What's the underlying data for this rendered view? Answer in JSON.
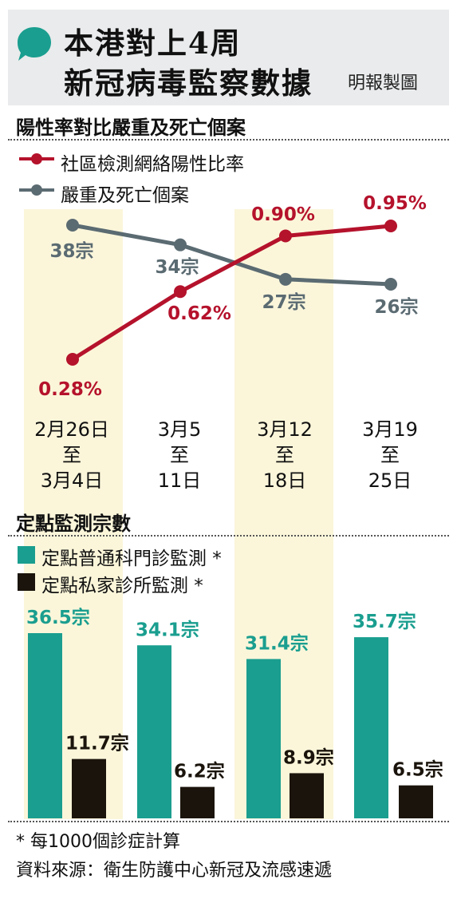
{
  "header": {
    "title_line1": "本港對上4周",
    "title_line2": "新冠病毒監察數據",
    "credit": "明報製圖",
    "bubble_color": "#1a9e8f"
  },
  "section1": {
    "title": "陽性率對比嚴重及死亡個案",
    "legend": [
      {
        "label": "社區檢測網絡陽性比率",
        "color": "#b5122c"
      },
      {
        "label": "嚴重及死亡個案",
        "color": "#5b6b72"
      }
    ]
  },
  "section2": {
    "title": "定點監測宗數",
    "legend": [
      {
        "label": "定點普通科門診監測 *",
        "color": "#1a9e8f"
      },
      {
        "label": "定點私家診所監測 *",
        "color": "#1a140c"
      }
    ]
  },
  "periods": [
    {
      "line1": "2月26日",
      "line2": "至",
      "line3": "3月4日"
    },
    {
      "line1": "3月5",
      "line2": "至",
      "line3": "11日"
    },
    {
      "line1": "3月12",
      "line2": "至",
      "line3": "18日"
    },
    {
      "line1": "3月19",
      "line2": "至",
      "line3": "25日"
    }
  ],
  "highlight_color": "#fbf6da",
  "chart_data": [
    {
      "type": "line",
      "categories": [
        "2月26日至3月4日",
        "3月5至11日",
        "3月12至18日",
        "3月19至25日"
      ],
      "series": [
        {
          "name": "社區檢測網絡陽性比率",
          "values": [
            0.28,
            0.62,
            0.9,
            0.95
          ],
          "labels": [
            "0.28%",
            "0.62%",
            "0.90%",
            "0.95%"
          ],
          "color": "#b5122c"
        },
        {
          "name": "嚴重及死亡個案",
          "values": [
            38,
            34,
            27,
            26
          ],
          "labels": [
            "38宗",
            "34宗",
            "27宗",
            "26宗"
          ],
          "color": "#5b6b72"
        }
      ],
      "title": "陽性率對比嚴重及死亡個案"
    },
    {
      "type": "bar",
      "categories": [
        "2月26日至3月4日",
        "3月5至11日",
        "3月12至18日",
        "3月19至25日"
      ],
      "series": [
        {
          "name": "定點普通科門診監測 *",
          "values": [
            36.5,
            34.1,
            31.4,
            35.7
          ],
          "labels": [
            "36.5宗",
            "34.1宗",
            "31.4宗",
            "35.7宗"
          ],
          "color": "#1a9e8f"
        },
        {
          "name": "定點私家診所監測 *",
          "values": [
            11.7,
            6.2,
            8.9,
            6.5
          ],
          "labels": [
            "11.7宗",
            "6.2宗",
            "8.9宗",
            "6.5宗"
          ],
          "color": "#1a140c"
        }
      ],
      "title": "定點監測宗數"
    }
  ],
  "footer": {
    "note": "* 每1000個診症計算",
    "source": "資料來源：衛生防護中心新冠及流感速遞"
  }
}
